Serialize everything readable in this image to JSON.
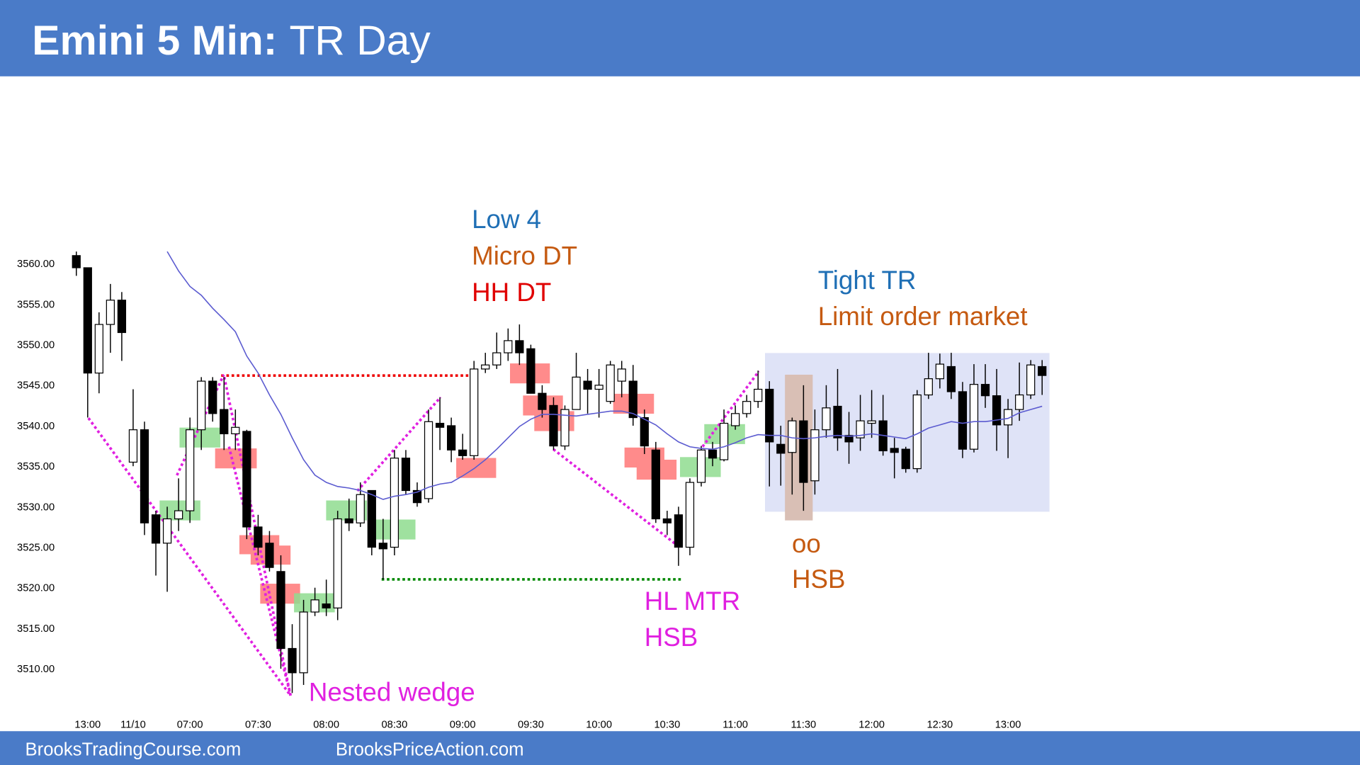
{
  "chart_data": {
    "type": "candlestick",
    "title": "Emini 5 Min:",
    "subtitle": "TR Day",
    "categories": [
      null,
      "13:00",
      null,
      null,
      null,
      "11/10",
      null,
      null,
      null,
      null,
      "07:00",
      null,
      null,
      null,
      null,
      null,
      "07:30",
      null,
      null,
      null,
      null,
      null,
      "08:00",
      null,
      null,
      null,
      null,
      null,
      "08:30",
      null,
      null,
      null,
      null,
      null,
      "09:00",
      null,
      null,
      null,
      null,
      null,
      "09:30",
      null,
      null,
      null,
      null,
      null,
      "10:00",
      null,
      null,
      null,
      null,
      null,
      "10:30",
      null,
      null,
      null,
      null,
      null,
      "11:00",
      null,
      null,
      null,
      null,
      null,
      "11:30",
      null,
      null,
      null,
      null,
      null,
      "12:00",
      null,
      null,
      null,
      null,
      null,
      "12:30",
      null,
      null,
      null,
      null,
      null,
      "13:00",
      null,
      null,
      null
    ],
    "open": [
      3561,
      3559.5,
      3546.5,
      3552.5,
      3555.5,
      3535.5,
      3539.5,
      3529,
      3525.5,
      3528.5,
      3529.5,
      3539.5,
      3545.5,
      3542,
      3539,
      3539.3,
      3527.5,
      3525.5,
      3522,
      3512.5,
      3509.5,
      3517,
      3518,
      3517.5,
      3528.5,
      3528,
      3532,
      3525.5,
      3525,
      3536,
      3532,
      3531,
      3540.3,
      3540,
      3537,
      3536.3,
      3547,
      3547.5,
      3549,
      3550.5,
      3549.5,
      3544,
      3542.5,
      3537.5,
      3542,
      3545.5,
      3544.5,
      3543,
      3545.5,
      3545.5,
      3541,
      3537,
      3528.5,
      3529,
      3525,
      3533,
      3537,
      3535.8,
      3540,
      3541.5,
      3543,
      3544.5,
      3537.7,
      3536.7,
      3540.6,
      3533.2,
      3539.5,
      3542.4,
      3538.8,
      3538.5,
      3540.3,
      3540.6,
      3537.2,
      3537.1,
      3534.7,
      3543.8,
      3545.8,
      3547.3,
      3544.2,
      3537.1,
      3545.1,
      3543.7,
      3540.1,
      3542,
      3543.8,
      3547.3
    ],
    "high": [
      3561.5,
      3559.5,
      3554,
      3557.5,
      3556.5,
      3544.5,
      3540.5,
      3529.5,
      3530,
      3533.5,
      3541,
      3546,
      3546,
      3546,
      3542,
      3539.5,
      3529,
      3527,
      3524,
      3515.5,
      3518.5,
      3520,
      3521,
      3529.5,
      3531,
      3533,
      3532,
      3528.5,
      3537,
      3537,
      3533,
      3542,
      3543.5,
      3541,
      3539,
      3548,
      3549,
      3551.5,
      3552,
      3552.5,
      3550,
      3545,
      3543.5,
      3542.5,
      3549,
      3547,
      3547,
      3548,
      3548,
      3547.5,
      3542,
      3538,
      3529.5,
      3530,
      3533.5,
      3537.5,
      3538,
      3542,
      3542.5,
      3543.8,
      3546.8,
      3545.5,
      3540,
      3541,
      3545,
      3542,
      3545,
      3547,
      3541.7,
      3543.8,
      3544.4,
      3543.8,
      3538.5,
      3537.4,
      3544.4,
      3549,
      3548.9,
      3549,
      3545.4,
      3547.6,
      3547.6,
      3547,
      3543.3,
      3547.8,
      3548.1,
      3548.1
    ],
    "low": [
      3558.5,
      3541,
      3544,
      3549,
      3548,
      3535,
      3526.5,
      3521.5,
      3519.5,
      3527,
      3528,
      3537,
      3540.5,
      3537,
      3537,
      3526,
      3524,
      3522,
      3510,
      3507,
      3508,
      3516.5,
      3516.5,
      3516,
      3527,
      3527.5,
      3524,
      3521,
      3524,
      3531.5,
      3530,
      3530.5,
      3537,
      3535.5,
      3535.8,
      3535.8,
      3546.5,
      3547,
      3548,
      3547.5,
      3544,
      3541,
      3537,
      3537,
      3542,
      3541.5,
      3541,
      3542.7,
      3543.5,
      3540,
      3536.5,
      3528,
      3526.5,
      3522.7,
      3524,
      3532.5,
      3535,
      3535.6,
      3539.5,
      3541,
      3542.2,
      3532.5,
      3532.6,
      3531.5,
      3529.5,
      3531.5,
      3538.5,
      3536.9,
      3535.3,
      3536.9,
      3538.5,
      3536.3,
      3533.5,
      3534.2,
      3534.2,
      3543.3,
      3544.6,
      3543.3,
      3536,
      3536.7,
      3542.2,
      3536.9,
      3536,
      3540.6,
      3543.3,
      3543.8
    ],
    "close": [
      3559.5,
      3546.5,
      3552.5,
      3555.5,
      3551.5,
      3539.5,
      3528,
      3525.5,
      3528.5,
      3529.5,
      3539.5,
      3545.5,
      3541.5,
      3539,
      3539.8,
      3527.5,
      3525,
      3522.5,
      3512.5,
      3509.5,
      3517,
      3518.5,
      3517.5,
      3528.5,
      3528,
      3531.5,
      3525,
      3524.8,
      3536,
      3532,
      3530.5,
      3540.5,
      3539.8,
      3537,
      3536.3,
      3547,
      3547.5,
      3549,
      3550.5,
      3549,
      3544,
      3542,
      3537.5,
      3542,
      3546,
      3544.5,
      3545,
      3547.5,
      3547,
      3541,
      3537.5,
      3528.5,
      3528,
      3525,
      3533,
      3537,
      3536,
      3540.3,
      3541.5,
      3543,
      3544.5,
      3538,
      3536.6,
      3540.6,
      3533,
      3539.5,
      3542.2,
      3538.5,
      3538,
      3540.6,
      3540.6,
      3536.9,
      3536.7,
      3534.7,
      3543.8,
      3545.8,
      3547.6,
      3544.2,
      3537.1,
      3545.1,
      3543.7,
      3540.1,
      3542,
      3543.8,
      3547.5,
      3546.2
    ],
    "up_color": "#ffffff",
    "down_color": "#000000",
    "moving_average": {
      "color": "#5b5bd0",
      "values": [
        null,
        null,
        null,
        null,
        null,
        null,
        null,
        null,
        3561.5,
        3559.1,
        3557.2,
        3556.1,
        3554.5,
        3553.1,
        3551.6,
        3548.6,
        3546.5,
        3543.8,
        3541.4,
        3538.5,
        3535.8,
        3533.9,
        3533,
        3532.5,
        3532.3,
        3532,
        3531.5,
        3530.9,
        3531.3,
        3531.5,
        3531.8,
        3532.4,
        3532.8,
        3533,
        3533.8,
        3534.7,
        3535.8,
        3537.1,
        3538.5,
        3539.9,
        3540.8,
        3541.4,
        3541.4,
        3541.3,
        3541.2,
        3541.4,
        3541.6,
        3541.8,
        3541.8,
        3541.5,
        3540.8,
        3540.1,
        3539,
        3538,
        3537.4,
        3537.2,
        3537.1,
        3537.4,
        3537.9,
        3538.5,
        3538.9,
        3538.8,
        3538.8,
        3538.5,
        3538.4,
        3538.5,
        3538.7,
        3538.8,
        3538.7,
        3538.8,
        3539,
        3538.8,
        3538.6,
        3538.4,
        3539,
        3539.7,
        3540.1,
        3540.5,
        3540.3,
        3540.5,
        3540.5,
        3540.7,
        3540.9,
        3541.6,
        3542,
        3542.4
      ]
    },
    "ylim": [
      3505,
      3563
    ],
    "yticks": [
      {
        "value": 3510,
        "label": "3510.00"
      },
      {
        "value": 3515,
        "label": "3515.00"
      },
      {
        "value": 3520,
        "label": "3520.00"
      },
      {
        "value": 3525,
        "label": "3525.00"
      },
      {
        "value": 3530,
        "label": "3530.00"
      },
      {
        "value": 3535,
        "label": "3535.00"
      },
      {
        "value": 3540,
        "label": "3540.00"
      },
      {
        "value": 3545,
        "label": "3545.00"
      },
      {
        "value": 3550,
        "label": "3550.00"
      },
      {
        "value": 3555,
        "label": "3555.00"
      },
      {
        "value": 3560,
        "label": "3560.00"
      }
    ],
    "grid": false,
    "annotations": [
      "Low 4",
      "Micro DT",
      "HH DT",
      "Tight TR",
      "Limit order market",
      "oo",
      "HSB",
      "HL MTR",
      "HSB",
      "Nested wedge"
    ]
  },
  "footer": [
    "BrooksTradingCourse.com",
    "BrooksPriceAction.com"
  ]
}
